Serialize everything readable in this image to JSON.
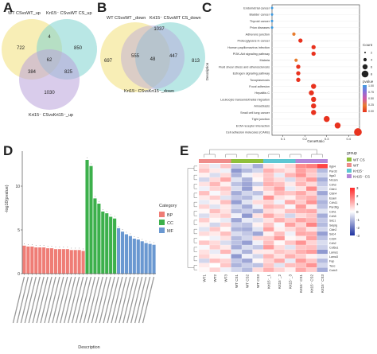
{
  "panel_labels": {
    "a": "A",
    "b": "B",
    "c": "C",
    "d": "D",
    "e": "E"
  },
  "venn_a": {
    "set_labels": [
      "WT CSvsWT_up",
      "Krt15⁻ CSvsWT CS_up",
      "Krt15⁻ CSvsKrt15⁻_up"
    ],
    "colors": [
      "#f3e07a",
      "#7fd3cf",
      "#b9a3da"
    ],
    "counts": {
      "a_only": "722",
      "ab": "4",
      "b_only": "850",
      "abc": "62",
      "ac": "384",
      "bc": "825",
      "c_only": "1030"
    }
  },
  "venn_b": {
    "set_labels": [
      "WT CSvsWT _down",
      "Krt15⁻ CSvsWT CS_down",
      "Krt15⁻ CSvsKrt15⁻_down"
    ],
    "colors": [
      "#f3e07a",
      "#7fd3cf",
      "#b9a3da"
    ],
    "counts": {
      "a_only": "697",
      "ab": "1037",
      "b_only": "813",
      "abc": "48",
      "ac": "555",
      "bc": "447"
    }
  },
  "chart_data": [
    {
      "type": "scatter",
      "panel": "C",
      "ylabel": "Description",
      "xlabel": "GeneRatio",
      "xticks": [
        "0.1",
        "0.2",
        "0.3",
        "0.4"
      ],
      "xlim": [
        0.05,
        0.45
      ],
      "categories": [
        "Endometrial cancer",
        "Bladder cancer",
        "Thyroid cancer",
        "Prion diseases",
        "Adherens junction",
        "Proteoglycans in cancer",
        "Human papillomavirus infection",
        "PI3K-Akt signaling pathway",
        "Malaria",
        "Fluid shear stress and atherosclerosis",
        "Estrogen signaling pathway",
        "Toxoplasmosis",
        "Focal adhesion",
        "Hepatitis C",
        "Leukocyte transendothelial migration",
        "Amoebiasis",
        "Small cell lung cancer",
        "Tight junction",
        "ECM-receptor interaction",
        "Cell adhesion molecules (CAMs)"
      ],
      "x": [
        0.05,
        0.05,
        0.05,
        0.05,
        0.15,
        0.18,
        0.24,
        0.24,
        0.16,
        0.17,
        0.17,
        0.17,
        0.24,
        0.23,
        0.24,
        0.24,
        0.24,
        0.3,
        0.35,
        0.47
      ],
      "count": [
        1,
        1,
        1,
        1,
        2,
        3,
        3,
        3,
        2,
        3,
        3,
        3,
        4,
        4,
        4,
        4,
        4,
        5,
        5,
        7
      ],
      "pvalue": [
        1.0,
        1.0,
        1.0,
        1.0,
        0.3,
        0.1,
        0.05,
        0.05,
        0.2,
        0.1,
        0.1,
        0.1,
        0.05,
        0.05,
        0.05,
        0.05,
        0.05,
        0.02,
        0.01,
        0.003
      ],
      "count_legend": {
        "title": "Count",
        "values": [
          "2",
          "4",
          "6",
          "8"
        ]
      },
      "pvalue_legend": {
        "title": "pvalue",
        "values": [
          "1.00",
          "0.75",
          "0.50",
          "0.25",
          "0.00"
        ]
      }
    },
    {
      "type": "bar",
      "panel": "D",
      "ylabel": "-log10(pvalue)",
      "xlabel": "Description",
      "legend_title": "Category",
      "series_names": [
        "BP",
        "CC",
        "MF"
      ],
      "colors": {
        "BP": "#ef7d76",
        "CC": "#3cb04b",
        "MF": "#6a98d1"
      },
      "categories_per_series": [
        16,
        8,
        10
      ],
      "values": [
        3.2,
        3.1,
        3.1,
        3.0,
        3.0,
        3.0,
        2.9,
        2.9,
        2.8,
        2.8,
        2.8,
        2.8,
        2.7,
        2.7,
        2.7,
        2.6,
        13.0,
        12.3,
        8.6,
        8.0,
        7.1,
        6.9,
        6.5,
        6.3,
        5.2,
        4.8,
        4.5,
        4.3,
        4.0,
        3.9,
        3.7,
        3.5,
        3.4,
        3.3
      ],
      "ylim": [
        0,
        14
      ],
      "yticks": [
        "0",
        "5",
        "10"
      ]
    },
    {
      "type": "heatmap",
      "panel": "E",
      "columns": [
        "WT1",
        "WT2",
        "WT3",
        "WT CS1",
        "WT CS2",
        "WT CS3",
        "Krt15⁻_1",
        "Krt15⁻_2",
        "Krt15⁻_3",
        "Krt15⁻ CS1",
        "Krt15⁻ CS2",
        "Krt15⁻ CS3"
      ],
      "rows": [
        "Itgb4",
        "Pard3",
        "Itga3",
        "Nrcam",
        "Cdh3",
        "Cldn1",
        "Cldn4",
        "Esam",
        "Cdh11",
        "Pard6g",
        "Cdh1",
        "Cdh5",
        "Sdc1",
        "Selplg",
        "Cldn2",
        "Sdc4",
        "Cd34",
        "Cdh2",
        "Col5a1",
        "Lama1",
        "Lama3",
        "Fap",
        "Tesc",
        "Ccdc3"
      ],
      "group_labels": [
        "WT CS",
        "WT",
        "Krt15⁻",
        "Krt15⁻ CS"
      ],
      "group_colors": {
        "WT": "#ef8d8b",
        "WT CS": "#8fbf3b",
        "Krt15⁻": "#5dc7d3",
        "Krt15⁻ CS": "#b387d8"
      },
      "col_groups": [
        "WT",
        "WT",
        "WT",
        "WT CS",
        "WT CS",
        "WT CS",
        "Krt15⁻",
        "Krt15⁻",
        "Krt15⁻",
        "Krt15⁻ CS",
        "Krt15⁻ CS",
        "Krt15⁻ CS"
      ],
      "legend_title": "group",
      "scale_labels": [
        "3",
        "2",
        "1",
        "0",
        "-1",
        "-2",
        "-3"
      ],
      "values": [
        [
          0.5,
          -0.3,
          0.8,
          -0.8,
          -0.5,
          -1.2,
          0.4,
          0.2,
          0.6,
          1.6,
          1.8,
          2.6
        ],
        [
          0.8,
          0.3,
          -0.2,
          -1.5,
          -1.0,
          -0.6,
          1.1,
          0.7,
          0.4,
          1.3,
          0.9,
          -1.0
        ],
        [
          0.2,
          -0.5,
          0.5,
          -1.1,
          -0.2,
          0.3,
          0.8,
          -0.3,
          1.0,
          1.5,
          0.7,
          -0.6
        ],
        [
          -0.6,
          0.5,
          1.2,
          -0.4,
          -1.1,
          0.1,
          0.9,
          0.5,
          -0.5,
          0.8,
          1.4,
          -1.2
        ],
        [
          0.4,
          1.0,
          0.2,
          -0.9,
          -1.3,
          -0.7,
          1.1,
          0.9,
          0.3,
          1.0,
          0.5,
          -0.8
        ],
        [
          -0.2,
          0.6,
          0.8,
          -0.5,
          -1.4,
          0.2,
          0.7,
          1.3,
          -0.3,
          0.4,
          1.6,
          -0.5
        ],
        [
          0.9,
          -0.1,
          0.5,
          -1.2,
          -0.6,
          -0.9,
          0.3,
          1.0,
          0.8,
          1.2,
          0.6,
          -1.3
        ],
        [
          0.3,
          0.7,
          -0.4,
          -0.8,
          -1.0,
          -0.3,
          1.5,
          0.4,
          0.2,
          0.9,
          1.1,
          -0.7
        ],
        [
          -0.3,
          0.2,
          0.9,
          -1.4,
          -0.4,
          0.5,
          0.6,
          -0.2,
          1.2,
          0.7,
          1.5,
          -1.1
        ],
        [
          0.6,
          -0.4,
          0.3,
          -0.6,
          -1.2,
          -0.2,
          1.0,
          0.8,
          -0.1,
          1.4,
          0.3,
          -0.9
        ],
        [
          0.1,
          0.9,
          0.4,
          -1.0,
          -0.7,
          -1.1,
          0.5,
          0.3,
          0.9,
          1.1,
          1.2,
          -0.4
        ],
        [
          -0.5,
          0.4,
          0.7,
          -0.2,
          -1.5,
          0.4,
          1.2,
          0.6,
          -0.6,
          0.5,
          0.8,
          -1.2
        ],
        [
          0.7,
          0.1,
          -0.3,
          -1.3,
          -0.3,
          -0.5,
          0.4,
          1.1,
          0.7,
          1.3,
          1.0,
          -0.8
        ],
        [
          0.2,
          -0.6,
          0.6,
          -0.7,
          -0.9,
          0.2,
          0.8,
          -0.1,
          1.3,
          0.6,
          1.7,
          -1.0
        ],
        [
          -0.4,
          0.8,
          0.1,
          -1.1,
          -1.2,
          -0.4,
          1.3,
          0.2,
          0.5,
          1.0,
          0.4,
          -0.6
        ],
        [
          0.5,
          0.3,
          0.9,
          -0.5,
          -0.8,
          -1.3,
          0.2,
          0.9,
          -0.2,
          1.2,
          1.1,
          -1.4
        ],
        [
          0.0,
          -0.2,
          0.4,
          -1.0,
          -0.6,
          0.6,
          0.7,
          1.4,
          0.1,
          0.3,
          1.3,
          -0.9
        ],
        [
          0.8,
          0.5,
          -0.5,
          -0.9,
          -1.4,
          -0.2,
          0.9,
          0.1,
          0.8,
          1.5,
          0.6,
          -0.5
        ],
        [
          -0.1,
          0.7,
          0.3,
          -1.2,
          -0.5,
          -0.8,
          1.4,
          0.5,
          -0.4,
          0.8,
          0.9,
          -0.7
        ],
        [
          0.4,
          -0.3,
          1.0,
          -0.4,
          -1.1,
          0.3,
          0.3,
          0.8,
          0.6,
          1.1,
          1.4,
          -1.5
        ],
        [
          0.6,
          0.2,
          -0.1,
          -1.5,
          -0.2,
          -0.6,
          1.0,
          0.4,
          1.1,
          0.7,
          0.2,
          -0.3
        ],
        [
          -0.6,
          0.9,
          0.6,
          -0.8,
          -1.3,
          0.1,
          0.6,
          1.2,
          -0.3,
          1.4,
          0.8,
          -1.0
        ],
        [
          0.3,
          0.0,
          0.8,
          -1.1,
          -0.7,
          -0.9,
          0.8,
          -0.4,
          0.9,
          0.9,
          1.5,
          -0.6
        ],
        [
          0.1,
          0.6,
          -0.2,
          -0.6,
          -1.0,
          0.5,
          1.1,
          0.6,
          0.2,
          1.2,
          0.7,
          -1.2
        ]
      ]
    }
  ]
}
